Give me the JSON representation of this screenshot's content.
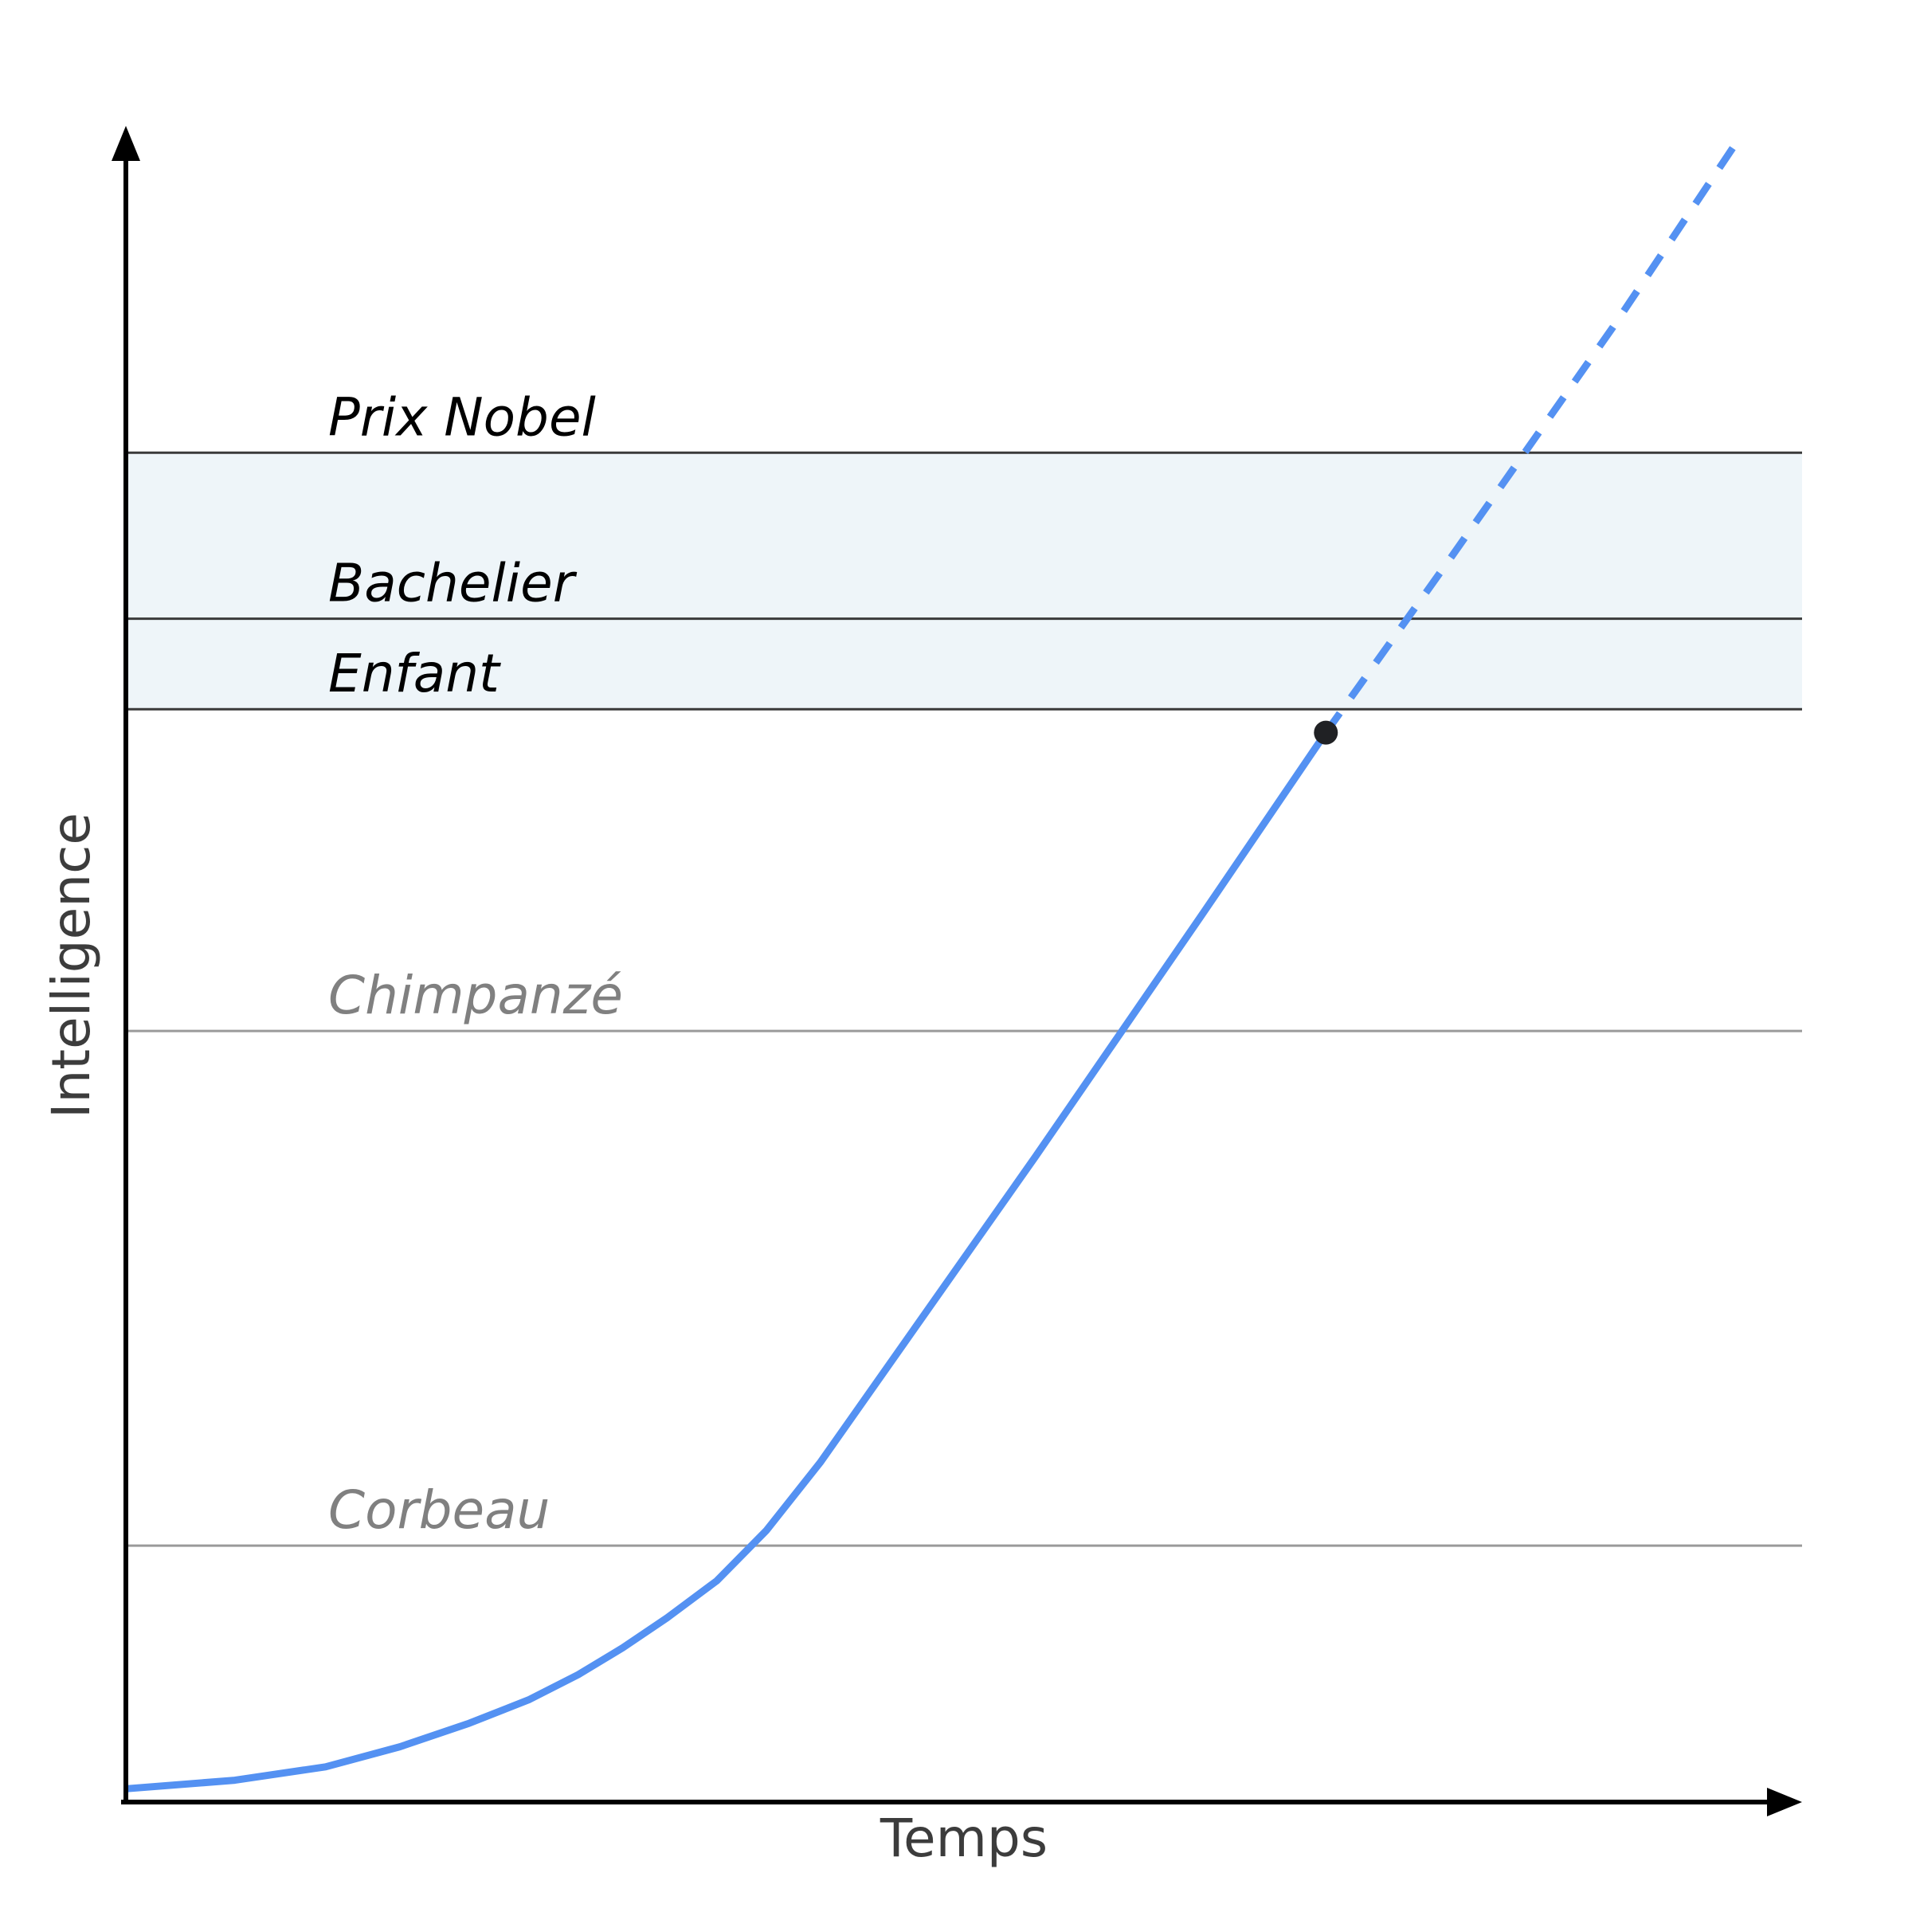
{
  "chart_data": {
    "type": "line",
    "title": "",
    "xlabel": "Temps",
    "ylabel": "Intelligence",
    "xlim": [
      0,
      100
    ],
    "ylim": [
      0,
      100
    ],
    "grid": false,
    "legend": "none",
    "reference_levels": [
      {
        "label": "Corbeau",
        "value": 15.3,
        "tone": "light"
      },
      {
        "label": "Chimpanzé",
        "value": 46.0,
        "tone": "light"
      },
      {
        "label": "Enfant",
        "value": 65.2,
        "tone": "dark"
      },
      {
        "label": "Bachelier",
        "value": 70.6,
        "tone": "dark"
      },
      {
        "label": "Prix Nobel",
        "value": 80.5,
        "tone": "dark"
      }
    ],
    "shaded_band": [
      65.2,
      80.5
    ],
    "series": [
      {
        "style": "solid",
        "x": [
          0.0,
          6.5,
          12.0,
          16.5,
          20.7,
          24.3,
          27.3,
          30.0,
          32.7,
          35.7,
          38.7,
          42.0,
          55.0,
          65.0,
          72.6
        ],
        "y": [
          0.8,
          1.3,
          2.1,
          3.3,
          4.7,
          6.1,
          7.6,
          9.2,
          11.0,
          13.2,
          16.2,
          20.3,
          38.5,
          52.8,
          63.8
        ]
      },
      {
        "style": "dashed",
        "x": [
          72.6,
          80.0,
          90.0,
          97.6
        ],
        "y": [
          63.8,
          74.0,
          88.0,
          99.2
        ]
      }
    ],
    "highlight_point": {
      "x": 72.6,
      "y": 63.8
    },
    "colors": {
      "series": "#5491f2",
      "band": "#eef5f9",
      "marker": "#202124"
    }
  }
}
